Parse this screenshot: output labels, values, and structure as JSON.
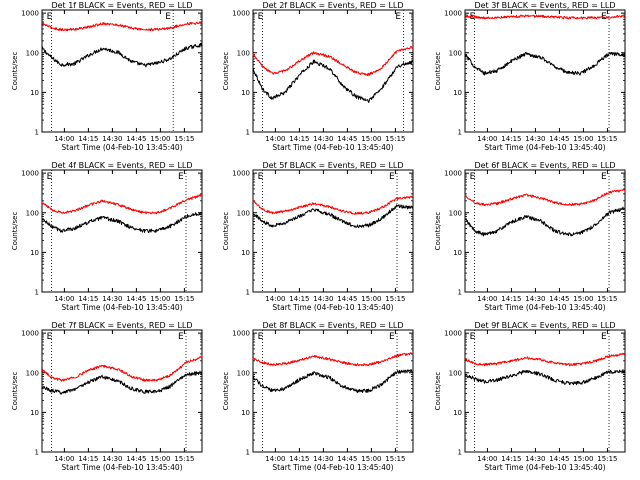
{
  "figure": {
    "panel_titles": [
      "Det 1f BLACK = Events, RED = LLD",
      "Det 2f BLACK = Events, RED = LLD",
      "Det 3f BLACK = Events, RED = LLD",
      "Det 4f BLACK = Events, RED = LLD",
      "Det 5f BLACK = Events, RED = LLD",
      "Det 6f BLACK = Events, RED = LLD",
      "Det 7f BLACK = Events, RED = LLD",
      "Det 8f BLACK = Events, RED = LLD",
      "Det 9f BLACK = Events, RED = LLD"
    ],
    "xlabel": "Start Time (04-Feb-10 13:45:40)",
    "ylabel": "Counts/sec",
    "x_ticks": [
      "14:00",
      "14:15",
      "14:30",
      "14:45",
      "15:00",
      "15:15"
    ],
    "y_ticks": [
      "1",
      "10",
      "100",
      "1000"
    ],
    "marker_start": "E",
    "marker_end": "E"
  },
  "colors": {
    "events": "#000000",
    "lld": "#ff0000"
  },
  "chart_data": [
    {
      "type": "line",
      "title": "Det 1f BLACK = Events, RED = LLD",
      "xlabel": "Start Time (04-Feb-10 13:45:40)",
      "ylabel": "Counts/sec",
      "x_unit": "minutes after 13:45:40",
      "y_scale": "log",
      "ylim": [
        1,
        1200
      ],
      "xlim": [
        0,
        100
      ],
      "event_lines_x": [
        6,
        82
      ],
      "series": [
        {
          "name": "BLACK = Events",
          "color": "#000000",
          "x": [
            0,
            6,
            12,
            20,
            30,
            38,
            48,
            56,
            64,
            72,
            80,
            90,
            100
          ],
          "y": [
            130,
            75,
            50,
            52,
            90,
            130,
            100,
            60,
            48,
            55,
            70,
            130,
            160
          ]
        },
        {
          "name": "RED = LLD",
          "color": "#ff0000",
          "x": [
            0,
            6,
            12,
            20,
            30,
            38,
            48,
            56,
            64,
            72,
            80,
            90,
            100
          ],
          "y": [
            550,
            430,
            380,
            390,
            450,
            550,
            500,
            420,
            380,
            390,
            420,
            540,
            570
          ]
        }
      ]
    },
    {
      "type": "line",
      "title": "Det 2f BLACK = Events, RED = LLD",
      "xlabel": "Start Time (04-Feb-10 13:45:40)",
      "ylabel": "Counts/sec",
      "x_unit": "minutes after 13:45:40",
      "y_scale": "log",
      "ylim": [
        1,
        1200
      ],
      "xlim": [
        0,
        100
      ],
      "event_lines_x": [
        6,
        94
      ],
      "series": [
        {
          "name": "BLACK = Events",
          "color": "#000000",
          "x": [
            0,
            6,
            12,
            20,
            30,
            38,
            48,
            56,
            64,
            72,
            80,
            90,
            100
          ],
          "y": [
            40,
            12,
            7,
            10,
            30,
            60,
            40,
            15,
            8,
            6,
            12,
            45,
            60
          ]
        },
        {
          "name": "RED = LLD",
          "color": "#ff0000",
          "x": [
            0,
            6,
            12,
            20,
            30,
            38,
            48,
            56,
            64,
            72,
            80,
            90,
            100
          ],
          "y": [
            90,
            45,
            30,
            35,
            65,
            100,
            80,
            50,
            32,
            28,
            40,
            110,
            140
          ]
        }
      ]
    },
    {
      "type": "line",
      "title": "Det 3f BLACK = Events, RED = LLD",
      "xlabel": "Start Time (04-Feb-10 13:45:40)",
      "ylabel": "Counts/sec",
      "x_unit": "minutes after 13:45:40",
      "y_scale": "log",
      "ylim": [
        1,
        1200
      ],
      "xlim": [
        0,
        100
      ],
      "event_lines_x": [
        6,
        90
      ],
      "series": [
        {
          "name": "BLACK = Events",
          "color": "#000000",
          "x": [
            0,
            6,
            12,
            20,
            30,
            38,
            48,
            56,
            64,
            72,
            80,
            90,
            100
          ],
          "y": [
            90,
            45,
            30,
            35,
            65,
            95,
            75,
            45,
            32,
            30,
            45,
            95,
            90
          ]
        },
        {
          "name": "RED = LLD",
          "color": "#ff0000",
          "x": [
            0,
            6,
            12,
            20,
            30,
            38,
            48,
            56,
            64,
            72,
            80,
            90,
            100
          ],
          "y": [
            850,
            800,
            760,
            780,
            820,
            850,
            830,
            800,
            760,
            750,
            770,
            800,
            840
          ]
        }
      ]
    },
    {
      "type": "line",
      "title": "Det 4f BLACK = Events, RED = LLD",
      "xlabel": "Start Time (04-Feb-10 13:45:40)",
      "ylabel": "Counts/sec",
      "x_unit": "minutes after 13:45:40",
      "y_scale": "log",
      "ylim": [
        1,
        1200
      ],
      "xlim": [
        0,
        100
      ],
      "event_lines_x": [
        6,
        90
      ],
      "series": [
        {
          "name": "BLACK = Events",
          "color": "#000000",
          "x": [
            0,
            6,
            12,
            20,
            30,
            38,
            48,
            56,
            64,
            72,
            80,
            90,
            100
          ],
          "y": [
            70,
            45,
            35,
            40,
            60,
            75,
            60,
            42,
            35,
            35,
            45,
            80,
            100
          ]
        },
        {
          "name": "RED = LLD",
          "color": "#ff0000",
          "x": [
            0,
            6,
            12,
            20,
            30,
            38,
            48,
            56,
            64,
            72,
            80,
            90,
            100
          ],
          "y": [
            180,
            120,
            100,
            110,
            160,
            200,
            160,
            120,
            100,
            100,
            130,
            210,
            280
          ]
        }
      ]
    },
    {
      "type": "line",
      "title": "Det 5f BLACK = Events, RED = LLD",
      "xlabel": "Start Time (04-Feb-10 13:45:40)",
      "ylabel": "Counts/sec",
      "x_unit": "minutes after 13:45:40",
      "y_scale": "log",
      "ylim": [
        1,
        1200
      ],
      "xlim": [
        0,
        100
      ],
      "event_lines_x": [
        6,
        90
      ],
      "series": [
        {
          "name": "BLACK = Events",
          "color": "#000000",
          "x": [
            0,
            6,
            12,
            20,
            30,
            38,
            48,
            56,
            64,
            72,
            80,
            90,
            100
          ],
          "y": [
            100,
            60,
            48,
            55,
            85,
            120,
            90,
            60,
            45,
            48,
            70,
            150,
            130
          ]
        },
        {
          "name": "RED = LLD",
          "color": "#ff0000",
          "x": [
            0,
            6,
            12,
            20,
            30,
            38,
            48,
            56,
            64,
            72,
            80,
            90,
            100
          ],
          "y": [
            200,
            120,
            100,
            110,
            140,
            170,
            140,
            110,
            95,
            100,
            130,
            230,
            250
          ]
        }
      ]
    },
    {
      "type": "line",
      "title": "Det 6f BLACK = Events, RED = LLD",
      "xlabel": "Start Time (04-Feb-10 13:45:40)",
      "ylabel": "Counts/sec",
      "x_unit": "minutes after 13:45:40",
      "y_scale": "log",
      "ylim": [
        1,
        1200
      ],
      "xlim": [
        0,
        100
      ],
      "event_lines_x": [
        6,
        90
      ],
      "series": [
        {
          "name": "BLACK = Events",
          "color": "#000000",
          "x": [
            0,
            6,
            12,
            20,
            30,
            38,
            48,
            56,
            64,
            72,
            80,
            90,
            100
          ],
          "y": [
            70,
            35,
            28,
            35,
            60,
            80,
            60,
            35,
            28,
            30,
            45,
            100,
            130
          ]
        },
        {
          "name": "RED = LLD",
          "color": "#ff0000",
          "x": [
            0,
            6,
            12,
            20,
            30,
            38,
            48,
            56,
            64,
            72,
            80,
            90,
            100
          ],
          "y": [
            280,
            180,
            160,
            170,
            230,
            280,
            230,
            180,
            160,
            165,
            200,
            330,
            370
          ]
        }
      ]
    },
    {
      "type": "line",
      "title": "Det 7f BLACK = Events, RED = LLD",
      "xlabel": "Start Time (04-Feb-10 13:45:40)",
      "ylabel": "Counts/sec",
      "x_unit": "minutes after 13:45:40",
      "y_scale": "log",
      "ylim": [
        1,
        1200
      ],
      "xlim": [
        0,
        100
      ],
      "event_lines_x": [
        6,
        90
      ],
      "series": [
        {
          "name": "BLACK = Events",
          "color": "#000000",
          "x": [
            0,
            6,
            12,
            20,
            30,
            38,
            48,
            56,
            64,
            72,
            80,
            90,
            100
          ],
          "y": [
            45,
            35,
            32,
            38,
            60,
            80,
            60,
            40,
            33,
            33,
            45,
            90,
            100
          ]
        },
        {
          "name": "RED = LLD",
          "color": "#ff0000",
          "x": [
            0,
            6,
            12,
            20,
            30,
            38,
            48,
            56,
            64,
            72,
            80,
            90,
            100
          ],
          "y": [
            120,
            75,
            65,
            75,
            120,
            150,
            120,
            80,
            65,
            65,
            85,
            180,
            250
          ]
        }
      ]
    },
    {
      "type": "line",
      "title": "Det 8f BLACK = Events, RED = LLD",
      "xlabel": "Start Time (04-Feb-10 13:45:40)",
      "ylabel": "Counts/sec",
      "x_unit": "minutes after 13:45:40",
      "y_scale": "log",
      "ylim": [
        1,
        1200
      ],
      "xlim": [
        0,
        100
      ],
      "event_lines_x": [
        6,
        90
      ],
      "series": [
        {
          "name": "BLACK = Events",
          "color": "#000000",
          "x": [
            0,
            6,
            12,
            20,
            30,
            38,
            48,
            56,
            64,
            72,
            80,
            90,
            100
          ],
          "y": [
            80,
            45,
            35,
            40,
            70,
            100,
            75,
            45,
            35,
            35,
            50,
            105,
            110
          ]
        },
        {
          "name": "RED = LLD",
          "color": "#ff0000",
          "x": [
            0,
            6,
            12,
            20,
            30,
            38,
            48,
            56,
            64,
            72,
            80,
            90,
            100
          ],
          "y": [
            230,
            180,
            160,
            170,
            210,
            260,
            220,
            180,
            160,
            160,
            190,
            270,
            310
          ]
        }
      ]
    },
    {
      "type": "line",
      "title": "Det 9f BLACK = Events, RED = LLD",
      "xlabel": "Start Time (04-Feb-10 13:45:40)",
      "ylabel": "Counts/sec",
      "x_unit": "minutes after 13:45:40",
      "y_scale": "log",
      "ylim": [
        1,
        1200
      ],
      "xlim": [
        0,
        100
      ],
      "event_lines_x": [
        6,
        90
      ],
      "series": [
        {
          "name": "BLACK = Events",
          "color": "#000000",
          "x": [
            0,
            6,
            12,
            20,
            30,
            38,
            48,
            56,
            64,
            72,
            80,
            90,
            100
          ],
          "y": [
            90,
            70,
            60,
            65,
            85,
            110,
            90,
            65,
            55,
            55,
            70,
            105,
            110
          ]
        },
        {
          "name": "RED = LLD",
          "color": "#ff0000",
          "x": [
            0,
            6,
            12,
            20,
            30,
            38,
            48,
            56,
            64,
            72,
            80,
            90,
            100
          ],
          "y": [
            220,
            170,
            160,
            170,
            200,
            240,
            210,
            175,
            160,
            165,
            190,
            260,
            300
          ]
        }
      ]
    }
  ]
}
